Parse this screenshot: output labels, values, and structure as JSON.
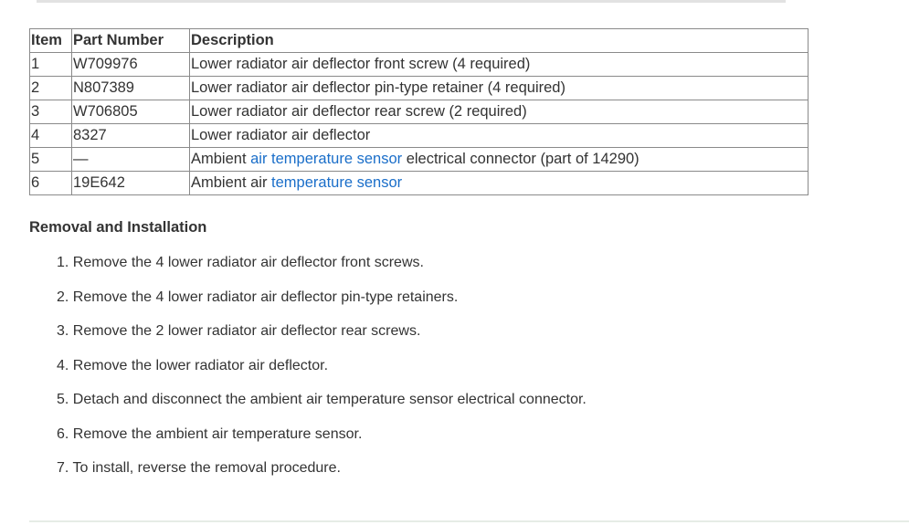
{
  "table": {
    "headers": [
      "Item",
      "Part Number",
      "Description"
    ],
    "rows": [
      {
        "item": "1",
        "part": "W709976",
        "desc_pre": "Lower radiator air deflector front screw (4 required)",
        "link": "",
        "desc_post": ""
      },
      {
        "item": "2",
        "part": "N807389",
        "desc_pre": "Lower radiator air deflector pin-type retainer (4 required)",
        "link": "",
        "desc_post": ""
      },
      {
        "item": "3",
        "part": "W706805",
        "desc_pre": "Lower radiator air deflector rear screw (2 required)",
        "link": "",
        "desc_post": ""
      },
      {
        "item": "4",
        "part": "8327",
        "desc_pre": "Lower radiator air deflector",
        "link": "",
        "desc_post": ""
      },
      {
        "item": "5",
        "part": "—",
        "desc_pre": "Ambient ",
        "link": "air temperature sensor",
        "desc_post": " electrical connector (part of 14290)"
      },
      {
        "item": "6",
        "part": "19E642",
        "desc_pre": "Ambient air ",
        "link": "temperature sensor",
        "desc_post": ""
      }
    ]
  },
  "section_title": "Removal and Installation",
  "steps": [
    "1. Remove the 4 lower radiator air deflector front screws.",
    "2. Remove the 4 lower radiator air deflector pin-type retainers.",
    "3. Remove the 2 lower radiator air deflector rear screws.",
    "4. Remove the lower radiator air deflector.",
    "5. Detach and disconnect the ambient air temperature sensor electrical connector.",
    "6. Remove the ambient air temperature sensor.",
    "7. To install, reverse the removal procedure."
  ],
  "colors": {
    "link": "#1a6ec9",
    "text": "#333333",
    "border": "#8a8a8a"
  }
}
